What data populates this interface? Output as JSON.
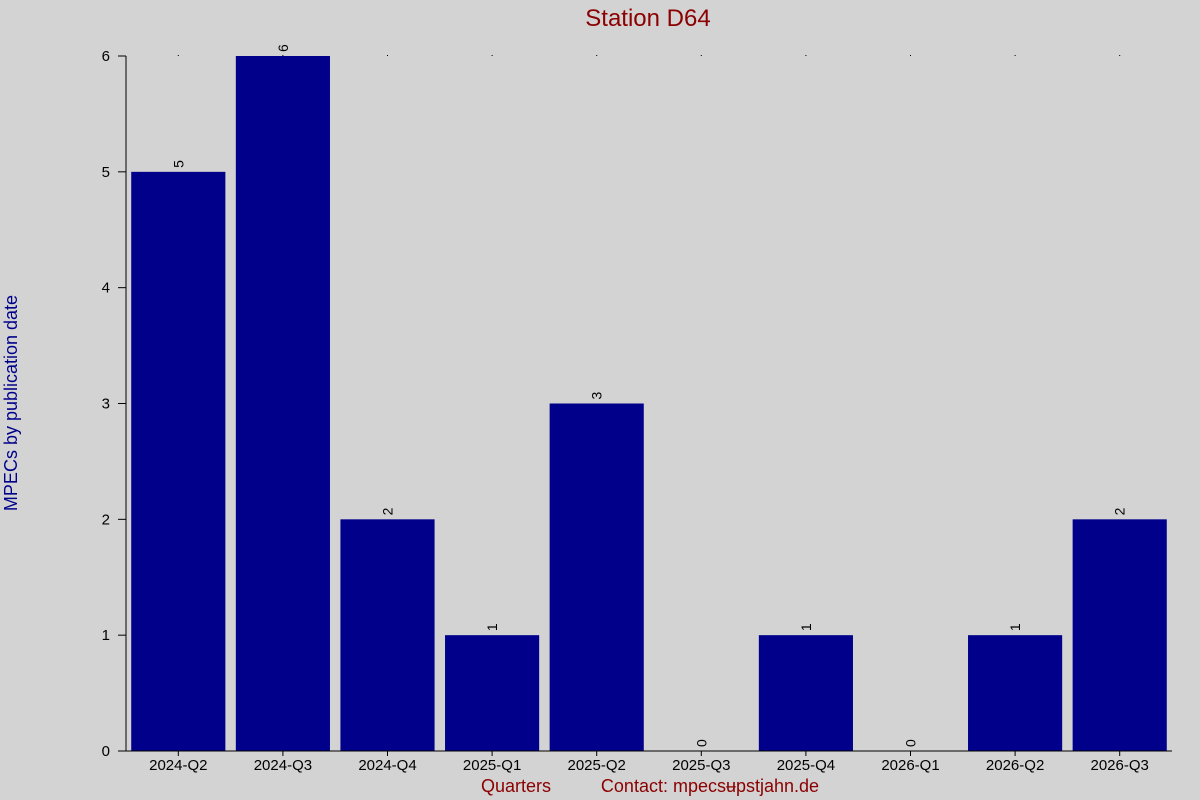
{
  "chart_data": {
    "type": "bar",
    "title": "Station D64",
    "xlabel": "Quarters",
    "ylabel": "MPECs by publication date",
    "contact": "Contact: mpecsʉpstjahn.de",
    "categories": [
      "2024-Q2",
      "2024-Q3",
      "2024-Q4",
      "2025-Q1",
      "2025-Q2",
      "2025-Q3",
      "2025-Q4",
      "2026-Q1",
      "2026-Q2",
      "2026-Q3"
    ],
    "values": [
      5,
      6,
      2,
      1,
      3,
      0,
      1,
      0,
      1,
      2
    ],
    "ylim": [
      0,
      6
    ],
    "yticks": [
      0,
      1,
      2,
      3,
      4,
      5,
      6
    ],
    "bar_color": "#00008b",
    "background": "#d3d3d3",
    "grid": false
  }
}
